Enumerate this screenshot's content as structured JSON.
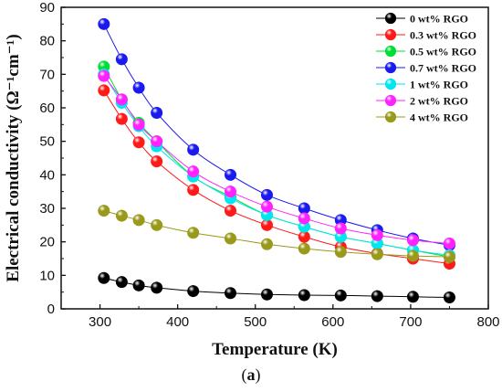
{
  "chart_data": {
    "type": "line",
    "title": "",
    "xlabel": "Temperature (K)",
    "ylabel": "Electrical conductivity (Ω⁻¹cm⁻¹)",
    "xlim": [
      250,
      800
    ],
    "ylim": [
      0,
      90
    ],
    "xticks": [
      300,
      400,
      500,
      600,
      700,
      800
    ],
    "yticks": [
      0,
      10,
      20,
      30,
      40,
      50,
      60,
      70,
      80,
      90
    ],
    "grid": false,
    "legend_position": "top-right",
    "x": [
      305,
      328,
      350,
      373,
      420,
      468,
      515,
      563,
      610,
      657,
      703,
      750
    ],
    "series": [
      {
        "name": "0 wt% RGO",
        "color": "#000000",
        "values": [
          9.2,
          8.0,
          7.0,
          6.3,
          5.3,
          4.7,
          4.3,
          4.1,
          4.0,
          3.8,
          3.6,
          3.4
        ]
      },
      {
        "name": "0.3 wt% RGO",
        "color": "#ff1a1a",
        "values": [
          65.2,
          56.7,
          49.7,
          44.0,
          35.5,
          29.3,
          25.0,
          21.5,
          18.5,
          16.5,
          15.0,
          13.5
        ]
      },
      {
        "name": "0.5 wt% RGO",
        "color": "#00dd33",
        "values": [
          72.3,
          62.5,
          55.5,
          50.0,
          39.5,
          33.5,
          28.0,
          24.5,
          21.5,
          19.5,
          17.5,
          15.5
        ]
      },
      {
        "name": "0.7 wt% RGO",
        "color": "#1a1aee",
        "values": [
          85.0,
          74.5,
          66.0,
          58.5,
          47.5,
          40.0,
          34.0,
          30.0,
          26.5,
          23.5,
          21.0,
          19.0
        ]
      },
      {
        "name": "1 wt% RGO",
        "color": "#00e5ee",
        "values": [
          70.0,
          61.5,
          54.5,
          48.5,
          39.5,
          33.0,
          28.0,
          24.5,
          21.5,
          19.5,
          17.5,
          16.0
        ]
      },
      {
        "name": "2 wt% RGO",
        "color": "#ff22ff",
        "values": [
          69.5,
          62.5,
          55.0,
          50.0,
          41.0,
          35.0,
          30.5,
          27.0,
          24.0,
          22.0,
          20.5,
          19.5
        ]
      },
      {
        "name": "4 wt% RGO",
        "color": "#99991a",
        "values": [
          29.3,
          27.8,
          26.5,
          25.0,
          22.7,
          21.0,
          19.3,
          18.0,
          17.0,
          16.3,
          15.8,
          15.5
        ]
      }
    ]
  },
  "caption": {
    "prefix": "(",
    "letter": "a",
    "suffix": ")"
  }
}
